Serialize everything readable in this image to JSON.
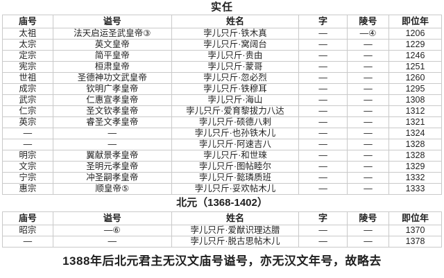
{
  "page": {
    "title": "实任",
    "footer_note": "1388年后北元君主无汉文庙号谥号，亦无汉文年号，故略去"
  },
  "colors": {
    "background": "#ffffff",
    "border": "#c9c9c9",
    "text": "#1f1f1f"
  },
  "main_table": {
    "headers": [
      "庙号",
      "谥号",
      "姓名",
      "字",
      "陵号",
      "即位年"
    ],
    "rows": [
      [
        "太祖",
        "法天启运圣武皇帝③",
        "孛儿只斤·铁木真",
        "—",
        "—④",
        "1206"
      ],
      [
        "太宗",
        "英文皇帝",
        "孛儿只斤·窝阔台",
        "—",
        "—",
        "1229"
      ],
      [
        "定宗",
        "简平皇帝",
        "孛儿只斤·贵由",
        "—",
        "—",
        "1246"
      ],
      [
        "宪宗",
        "桓肃皇帝",
        "孛儿只斤·蒙哥",
        "—",
        "—",
        "1251"
      ],
      [
        "世祖",
        "圣德神功文武皇帝",
        "孛儿只斤·忽必烈",
        "—",
        "—",
        "1260"
      ],
      [
        "成宗",
        "钦明广孝皇帝",
        "孛儿只斤·铁穆耳",
        "—",
        "—",
        "1295"
      ],
      [
        "武宗",
        "仁惠宣孝皇帝",
        "孛儿只斤·海山",
        "—",
        "—",
        "1308"
      ],
      [
        "仁宗",
        "圣文钦孝皇帝",
        "孛儿只斤·爱育黎拔力八达",
        "—",
        "—",
        "1312"
      ],
      [
        "英宗",
        "睿圣文孝皇帝",
        "孛儿只斤·硕德八剌",
        "—",
        "—",
        "1321"
      ],
      [
        "—",
        "—",
        "孛儿只斤·也孙铁木儿",
        "—",
        "—",
        "1324"
      ],
      [
        "—",
        "—",
        "孛儿只斤·阿速吉八",
        "—",
        "—",
        "1328"
      ],
      [
        "明宗",
        "翼献景孝皇帝",
        "孛儿只斤·和世琜",
        "—",
        "—",
        "1328"
      ],
      [
        "文宗",
        "圣明元孝皇帝",
        "孛儿只斤·图帖睦尔",
        "—",
        "—",
        "1329"
      ],
      [
        "宁宗",
        "冲圣嗣孝皇帝",
        "孛儿只斤·懿璘质班",
        "—",
        "—",
        "1332"
      ],
      [
        "惠宗",
        "顺皇帝⑤",
        "孛儿只斤·妥欢帖木儿",
        "—",
        "—",
        "1333"
      ]
    ]
  },
  "north_yuan_table": {
    "section_title": "北元（1368-1402）",
    "headers": [
      "庙号",
      "谥号",
      "姓名",
      "字",
      "陵号",
      "即位年"
    ],
    "rows": [
      [
        "昭宗",
        "—⑥",
        "孛儿只斤·爱猷识理达腊",
        "—",
        "—",
        "1370"
      ],
      [
        "—",
        "—",
        "孛儿只斤·脱古思帖木儿",
        "—",
        "—",
        "1378"
      ]
    ]
  }
}
